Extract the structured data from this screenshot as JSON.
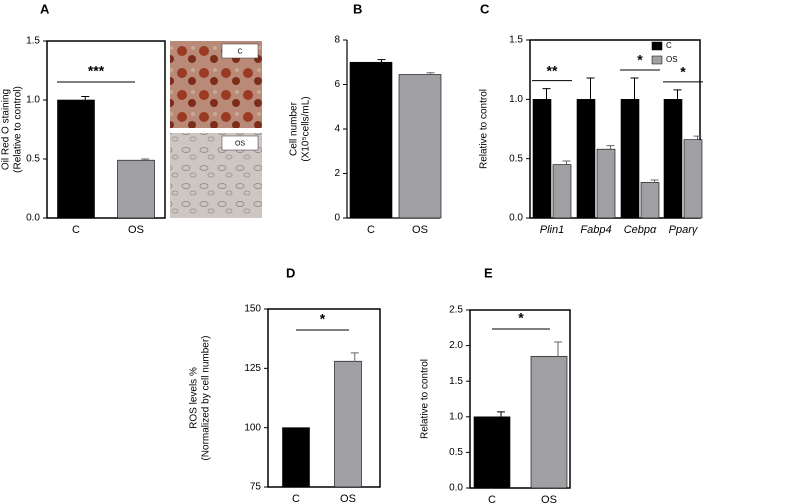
{
  "chart_data": [
    {
      "type": "bar",
      "panel": "A",
      "categories": [
        "C",
        "OS"
      ],
      "values": [
        1.0,
        0.49
      ],
      "errors": [
        0.03,
        0.01
      ],
      "colors": [
        "#000000",
        "#a0a0a4"
      ],
      "ylim": [
        0,
        1.5
      ],
      "yticks": [
        {
          "value": 0,
          "label": "0.0"
        },
        0.5,
        {
          "value": 1,
          "label": "1.0"
        },
        1.5
      ],
      "ylabel": [
        "Oil Red O staining",
        "(Relative to control)"
      ],
      "annotation": "***",
      "image_labels": [
        "C",
        "OS"
      ]
    },
    {
      "type": "bar",
      "panel": "B",
      "categories": [
        "C",
        "OS"
      ],
      "values": [
        7.0,
        6.45
      ],
      "errors": [
        0.12,
        0.08
      ],
      "colors": [
        "#000000",
        "#a0a0a4"
      ],
      "ylim": [
        0,
        8
      ],
      "yticks": [
        0,
        2,
        4,
        6,
        8
      ],
      "ylabel": [
        "Cell number",
        "(X10⁵cells/mL)"
      ]
    },
    {
      "type": "grouped_bar",
      "panel": "C",
      "categories": [
        "Plin1",
        "Fabp4",
        "Cebpα",
        "Pparγ"
      ],
      "series": [
        {
          "name": "C",
          "color": "#000000",
          "values": [
            1.0,
            1.0,
            1.0,
            1.0
          ],
          "errors": [
            0.09,
            0.18,
            0.18,
            0.08
          ]
        },
        {
          "name": "OS",
          "color": "#a0a0a4",
          "values": [
            0.45,
            0.58,
            0.3,
            0.66
          ],
          "errors": [
            0.03,
            0.03,
            0.02,
            0.03
          ]
        }
      ],
      "ylim": [
        0,
        1.5
      ],
      "yticks": [
        {
          "value": 0,
          "label": "0.0"
        },
        0.5,
        {
          "value": 1,
          "label": "1.0"
        },
        1.5
      ],
      "ylabel": [
        "Relative to control"
      ],
      "legend": "upper right",
      "annotations": [
        {
          "category": 0,
          "label": "**"
        },
        {
          "category": 2,
          "label": "*"
        },
        {
          "category": 3,
          "label": "*"
        }
      ]
    },
    {
      "type": "bar",
      "panel": "D",
      "categories": [
        "C",
        "OS"
      ],
      "values": [
        100,
        128
      ],
      "errors": [
        0,
        3.5
      ],
      "colors": [
        "#000000",
        "#a0a0a4"
      ],
      "ylim": [
        75,
        150
      ],
      "yticks": [
        75,
        100,
        125,
        150
      ],
      "ylabel": [
        "ROS levels %",
        "(Normalized by cell number)"
      ],
      "annotation": "*"
    },
    {
      "type": "bar",
      "panel": "E",
      "categories": [
        "C",
        "OS"
      ],
      "values": [
        1.0,
        1.85
      ],
      "errors": [
        0.07,
        0.2
      ],
      "colors": [
        "#000000",
        "#a0a0a4"
      ],
      "ylim": [
        0,
        2.5
      ],
      "yticks": [
        {
          "value": 0,
          "label": "0.0"
        },
        0.5,
        {
          "value": 1,
          "label": "1.0"
        },
        1.5,
        {
          "value": 2,
          "label": "2.0"
        },
        2.5
      ],
      "ylabel": [
        "Relative to control"
      ],
      "annotation": "*"
    }
  ]
}
